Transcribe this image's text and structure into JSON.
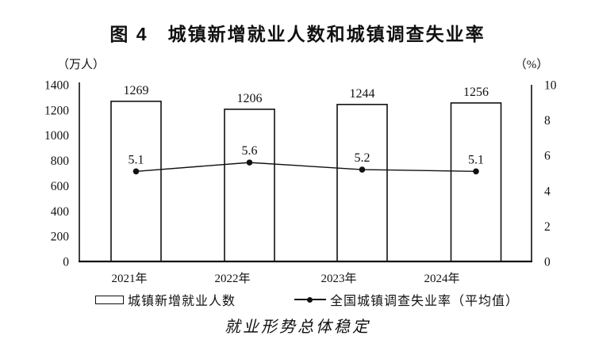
{
  "chart_data": {
    "type": "bar",
    "title": "图 4　城镇新增就业人数和城镇调查失业率",
    "categories": [
      "2021年",
      "2022年",
      "2023年",
      "2024年"
    ],
    "series": [
      {
        "name": "城镇新增就业人数",
        "type": "bar",
        "axis": "left",
        "values": [
          1269,
          1206,
          1244,
          1256
        ]
      },
      {
        "name": "全国城镇调查失业率（平均值）",
        "type": "line",
        "axis": "right",
        "values": [
          5.1,
          5.6,
          5.2,
          5.1
        ]
      }
    ],
    "left_axis": {
      "unit": "（万人）",
      "min": 0,
      "max": 1400,
      "step": 200
    },
    "right_axis": {
      "unit": "（%）",
      "min": 0,
      "max": 10,
      "step": 2
    },
    "grid": false,
    "legend_position": "bottom",
    "bar_fill": "#ffffff",
    "ink_color": "#111111",
    "caption": "就业形势总体稳定"
  }
}
